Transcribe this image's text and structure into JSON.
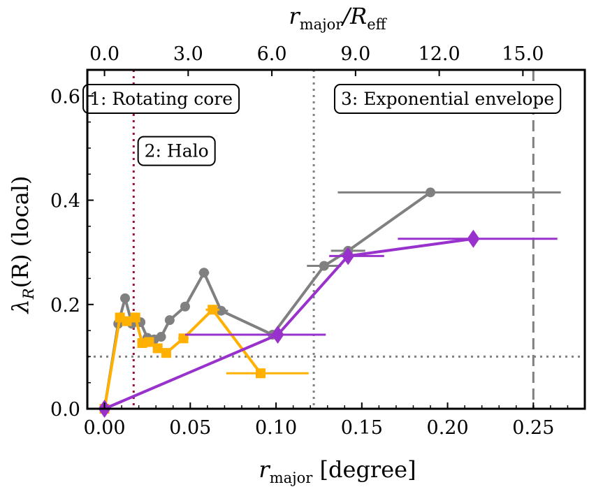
{
  "chart_data": {
    "type": "line",
    "xlabel": {
      "main": "r",
      "sub": "major",
      "unit": " [degree]"
    },
    "ylabel": {
      "main": "λ",
      "sub": "R",
      "rest": "(R) (local)"
    },
    "top_xlabel": {
      "main": "r",
      "sub": "major",
      "sep": "/R",
      "sub2": "eff"
    },
    "xlim": [
      -0.01,
      0.28
    ],
    "ylim": [
      0.0,
      0.65
    ],
    "xticks": [
      0.0,
      0.05,
      0.1,
      0.15,
      0.2,
      0.25
    ],
    "xtick_labels": [
      "0.00",
      "0.05",
      "0.10",
      "0.15",
      "0.20",
      "0.25"
    ],
    "yticks": [
      0.0,
      0.2,
      0.4,
      0.6
    ],
    "ytick_labels": [
      "0.0",
      "0.2",
      "0.4",
      "0.6"
    ],
    "top_xticks": [
      0.0,
      3.0,
      6.0,
      9.0,
      12.0,
      15.0
    ],
    "top_xtick_labels": [
      "0.0",
      "3.0",
      "6.0",
      "9.0",
      "12.0",
      "15.0"
    ],
    "top_scale_per_degree": 61.5,
    "series": [
      {
        "color": "#808080",
        "marker": "circle",
        "points": [
          {
            "x": 0.0,
            "y": 0.0
          },
          {
            "x": 0.008,
            "y": 0.163
          },
          {
            "x": 0.012,
            "y": 0.212
          },
          {
            "x": 0.016,
            "y": 0.163
          },
          {
            "x": 0.021,
            "y": 0.166
          },
          {
            "x": 0.025,
            "y": 0.136
          },
          {
            "x": 0.029,
            "y": 0.133
          },
          {
            "x": 0.033,
            "y": 0.138
          },
          {
            "x": 0.038,
            "y": 0.17
          },
          {
            "x": 0.047,
            "y": 0.196
          },
          {
            "x": 0.058,
            "y": 0.261,
            "xerr": 0.003
          },
          {
            "x": 0.068,
            "y": 0.188,
            "xerr": 0.004
          },
          {
            "x": 0.098,
            "y": 0.142
          },
          {
            "x": 0.128,
            "y": 0.274,
            "xerr": 0.01
          },
          {
            "x": 0.142,
            "y": 0.303,
            "xerr": 0.01
          },
          {
            "x": 0.19,
            "y": 0.415,
            "xerr_low": 0.054,
            "xerr_high": 0.076
          }
        ]
      },
      {
        "color": "#ffb000",
        "marker": "square",
        "points": [
          {
            "x": 0.0,
            "y": 0.0
          },
          {
            "x": 0.009,
            "y": 0.175
          },
          {
            "x": 0.013,
            "y": 0.168
          },
          {
            "x": 0.018,
            "y": 0.175
          },
          {
            "x": 0.022,
            "y": 0.126
          },
          {
            "x": 0.026,
            "y": 0.128
          },
          {
            "x": 0.031,
            "y": 0.116
          },
          {
            "x": 0.036,
            "y": 0.107
          },
          {
            "x": 0.046,
            "y": 0.135,
            "xerr": 0.003
          },
          {
            "x": 0.063,
            "y": 0.19,
            "xerr": 0.004
          },
          {
            "x": 0.091,
            "y": 0.068,
            "xerr_low": 0.02,
            "xerr_high": 0.028
          }
        ]
      },
      {
        "color": "#9932cc",
        "marker": "diamond",
        "points": [
          {
            "x": 0.0,
            "y": 0.0
          },
          {
            "x": 0.101,
            "y": 0.142,
            "xerr_low": 0.054,
            "xerr_high": 0.028
          },
          {
            "x": 0.142,
            "y": 0.293,
            "xerr_low": 0.011,
            "xerr_high": 0.021
          },
          {
            "x": 0.215,
            "y": 0.326,
            "xerr_low": 0.044,
            "xerr_high": 0.049
          }
        ]
      }
    ],
    "hlines": [
      {
        "y": 0.1,
        "color": "#808080",
        "style": "dotted"
      }
    ],
    "vlines": [
      {
        "x": 0.017,
        "color": "#9b1030",
        "style": "dotted"
      },
      {
        "x": 0.122,
        "color": "#808080",
        "style": "dotted"
      },
      {
        "x": 0.25,
        "color": "#808080",
        "style": "dashed"
      }
    ],
    "annotations": [
      {
        "text": "1: Rotating core",
        "x": 0.033,
        "y": 0.595
      },
      {
        "text": "2: Halo",
        "x": 0.042,
        "y": 0.495
      },
      {
        "text": "3: Exponential envelope",
        "x": 0.2,
        "y": 0.595
      }
    ]
  }
}
